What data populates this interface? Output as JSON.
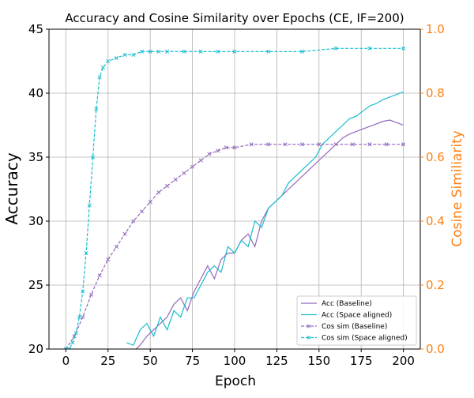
{
  "chart_data": {
    "type": "line",
    "title": "Accuracy and Cosine Similarity over Epochs (CE, IF=200)",
    "xlabel": "Epoch",
    "ylabel_left": "Accuracy",
    "ylabel_right": "Cosine Similiarity",
    "xlim": [
      -10,
      210
    ],
    "ylim_left": [
      20,
      45
    ],
    "ylim_right": [
      0.0,
      1.0
    ],
    "x_ticks": [
      0,
      25,
      50,
      75,
      100,
      125,
      150,
      175,
      200
    ],
    "x_tick_labels": [
      "0",
      "25",
      "50",
      "75",
      "100",
      "125",
      "150",
      "175",
      "200"
    ],
    "y_left_ticks": [
      20,
      25,
      30,
      35,
      40,
      45
    ],
    "y_left_tick_labels": [
      "20",
      "25",
      "30",
      "35",
      "40",
      "45"
    ],
    "y_right_ticks": [
      0.0,
      0.2,
      0.4,
      0.6,
      0.8,
      1.0
    ],
    "y_right_tick_labels": [
      "0.0",
      "0.2",
      "0.4",
      "0.6",
      "0.8",
      "1.0"
    ],
    "grid": true,
    "legend_position": "lower-right",
    "colors": {
      "baseline": "#9467bd",
      "space_aligned": "#17becf",
      "right_axis": "#ff7f0e",
      "grid": "#b0b0b0",
      "text": "#000000"
    },
    "series": [
      {
        "name": "Acc (Baseline)",
        "axis": "left",
        "style": "solid",
        "color": "#9467bd",
        "x": [
          36,
          40,
          44,
          48,
          52,
          56,
          60,
          64,
          68,
          72,
          76,
          80,
          84,
          88,
          92,
          96,
          100,
          104,
          108,
          112,
          116,
          120,
          124,
          128,
          132,
          136,
          140,
          144,
          148,
          152,
          156,
          160,
          164,
          168,
          172,
          176,
          180,
          184,
          188,
          192,
          196,
          200
        ],
        "y": [
          19.5,
          19.8,
          20.3,
          21.0,
          21.5,
          22.0,
          22.5,
          23.5,
          24.0,
          23.0,
          24.5,
          25.5,
          26.5,
          25.5,
          27.0,
          27.5,
          27.5,
          28.5,
          29.0,
          28.0,
          30.0,
          31.0,
          31.5,
          32.0,
          32.5,
          33.0,
          33.5,
          34.0,
          34.5,
          35.0,
          35.5,
          36.0,
          36.5,
          36.8,
          37.0,
          37.2,
          37.4,
          37.6,
          37.8,
          37.9,
          37.7,
          37.5
        ]
      },
      {
        "name": "Acc (Space aligned)",
        "axis": "left",
        "style": "solid",
        "color": "#17becf",
        "x": [
          36,
          40,
          44,
          48,
          52,
          56,
          60,
          64,
          68,
          72,
          76,
          80,
          84,
          88,
          92,
          96,
          100,
          104,
          108,
          112,
          116,
          120,
          124,
          128,
          132,
          136,
          140,
          144,
          148,
          152,
          156,
          160,
          164,
          168,
          172,
          176,
          180,
          184,
          188,
          192,
          196,
          200
        ],
        "y": [
          20.5,
          20.3,
          21.5,
          22.0,
          21.0,
          22.5,
          21.5,
          23.0,
          22.5,
          24.0,
          24.0,
          25.0,
          26.0,
          26.5,
          26.0,
          28.0,
          27.5,
          28.5,
          28.0,
          30.0,
          29.5,
          31.0,
          31.5,
          32.0,
          33.0,
          33.5,
          34.0,
          34.5,
          35.0,
          36.0,
          36.5,
          37.0,
          37.5,
          38.0,
          38.2,
          38.6,
          39.0,
          39.2,
          39.5,
          39.7,
          39.9,
          40.1
        ]
      },
      {
        "name": "Cos sim (Baseline)",
        "axis": "right",
        "style": "dashed",
        "marker": "x",
        "color": "#9467bd",
        "x": [
          0,
          5,
          10,
          15,
          20,
          25,
          30,
          35,
          40,
          45,
          50,
          55,
          60,
          65,
          70,
          75,
          80,
          85,
          90,
          95,
          100,
          110,
          120,
          130,
          140,
          150,
          160,
          170,
          180,
          190,
          200
        ],
        "y": [
          0.0,
          0.04,
          0.1,
          0.17,
          0.23,
          0.28,
          0.32,
          0.36,
          0.4,
          0.43,
          0.46,
          0.49,
          0.51,
          0.53,
          0.55,
          0.57,
          0.59,
          0.61,
          0.62,
          0.63,
          0.63,
          0.64,
          0.64,
          0.64,
          0.64,
          0.64,
          0.64,
          0.64,
          0.64,
          0.64,
          0.64
        ]
      },
      {
        "name": "Cos sim (Space aligned)",
        "axis": "right",
        "style": "dashed",
        "marker": "x",
        "color": "#17becf",
        "x": [
          0,
          2,
          4,
          6,
          8,
          10,
          12,
          14,
          16,
          18,
          20,
          22,
          25,
          30,
          35,
          40,
          45,
          50,
          55,
          60,
          70,
          80,
          90,
          100,
          120,
          140,
          160,
          180,
          200
        ],
        "y": [
          0.0,
          0.0,
          0.02,
          0.05,
          0.1,
          0.18,
          0.3,
          0.45,
          0.6,
          0.75,
          0.85,
          0.88,
          0.9,
          0.91,
          0.92,
          0.92,
          0.93,
          0.93,
          0.93,
          0.93,
          0.93,
          0.93,
          0.93,
          0.93,
          0.93,
          0.93,
          0.94,
          0.94,
          0.94
        ]
      }
    ]
  }
}
